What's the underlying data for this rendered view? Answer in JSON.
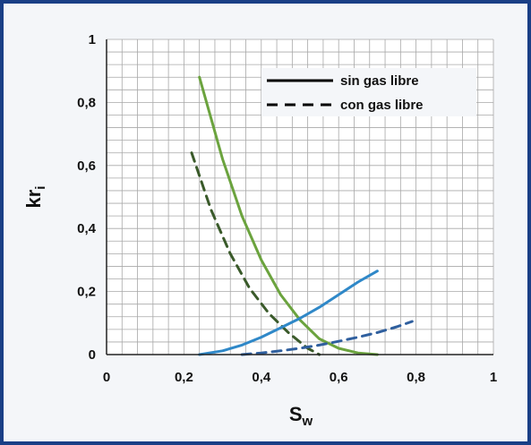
{
  "chart_data": {
    "type": "line",
    "title": "",
    "xlabel": "S",
    "xlabel_sub": "w",
    "ylabel": "kr",
    "ylabel_sub": "i",
    "xlim": [
      0,
      1
    ],
    "ylim": [
      0,
      1
    ],
    "x_ticks": [
      "0",
      "0,2",
      "0,4",
      "0,6",
      "0,8",
      "1"
    ],
    "y_ticks": [
      "0",
      "0,2",
      "0,4",
      "0,6",
      "0,8",
      "1"
    ],
    "grid": true,
    "legend_position": "top-right",
    "legend": [
      {
        "label": "sin gas libre",
        "style": "solid"
      },
      {
        "label": "con gas libre",
        "style": "dashed"
      }
    ],
    "series": [
      {
        "color": "#6ba33e",
        "style": "solid",
        "x": [
          0.24,
          0.3,
          0.35,
          0.4,
          0.45,
          0.5,
          0.55,
          0.6,
          0.65,
          0.7
        ],
        "y": [
          0.88,
          0.62,
          0.44,
          0.3,
          0.19,
          0.11,
          0.05,
          0.02,
          0.005,
          0.0
        ]
      },
      {
        "color": "#3a5a2a",
        "style": "dashed",
        "x": [
          0.22,
          0.27,
          0.32,
          0.37,
          0.42,
          0.47,
          0.52,
          0.55
        ],
        "y": [
          0.64,
          0.46,
          0.32,
          0.21,
          0.13,
          0.07,
          0.02,
          0.0
        ]
      },
      {
        "color": "#2f88c8",
        "style": "solid",
        "x": [
          0.24,
          0.3,
          0.35,
          0.4,
          0.45,
          0.5,
          0.55,
          0.6,
          0.65,
          0.7
        ],
        "y": [
          0.0,
          0.012,
          0.03,
          0.055,
          0.085,
          0.115,
          0.15,
          0.19,
          0.23,
          0.265
        ]
      },
      {
        "color": "#2f5f9e",
        "style": "dashed",
        "x": [
          0.35,
          0.4,
          0.45,
          0.5,
          0.55,
          0.6,
          0.65,
          0.7,
          0.75,
          0.79
        ],
        "y": [
          0.0,
          0.005,
          0.012,
          0.02,
          0.03,
          0.042,
          0.055,
          0.07,
          0.088,
          0.105
        ]
      }
    ]
  },
  "colors": {
    "frame": "#1a3f86",
    "grid": "#a8a8a8"
  }
}
